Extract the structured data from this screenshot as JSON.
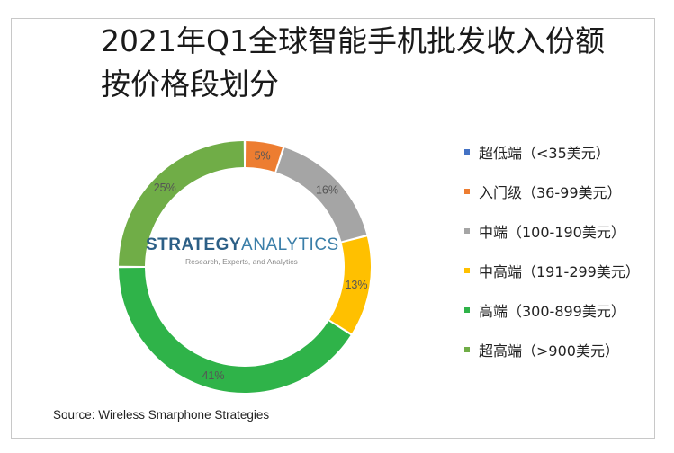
{
  "title": {
    "line1": "2021年Q1全球智能手机批发收入份额",
    "line2": "按价格段划分"
  },
  "logo": {
    "main_part1": "STRATEGY",
    "main_part2": "ANALYTICS",
    "tagline": "Research, Experts, and Analytics"
  },
  "source": "Source: Wireless Smarphone Strategies",
  "chart_data": {
    "type": "pie",
    "donut": true,
    "legend_position": "right",
    "categories": [
      "超低端（<35美元）",
      "入门级（36-99美元）",
      "中端（100-190美元）",
      "中高端（191-299美元）",
      "高端（300-899美元）",
      "超高端（>900美元）"
    ],
    "values": [
      0,
      5,
      16,
      13,
      41,
      25
    ],
    "labels": [
      "",
      "5%",
      "16%",
      "13%",
      "41%",
      "25%"
    ],
    "colors": [
      "#4472c4",
      "#ed7d31",
      "#a5a5a5",
      "#ffc000",
      "#2fb349",
      "#70ad47"
    ]
  }
}
